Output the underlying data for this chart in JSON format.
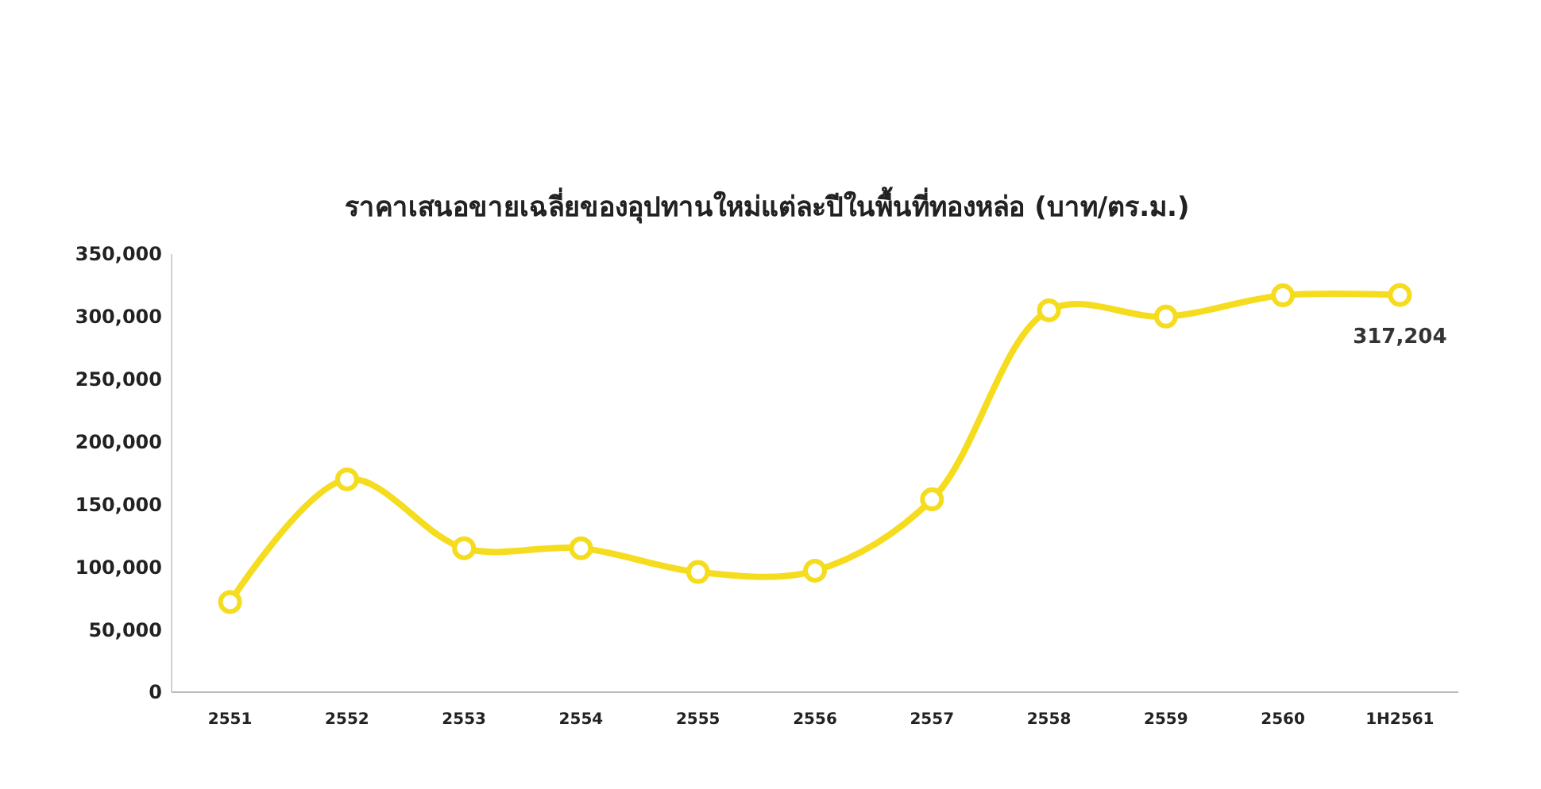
{
  "chart_data": {
    "type": "line",
    "title": "ราคาเสนอขายเฉลี่ยของอุปทานใหม่แต่ละปีในพื้นที่ทองหล่อ (บาท/ตร.ม.)",
    "categories": [
      "2551",
      "2552",
      "2553",
      "2554",
      "2555",
      "2556",
      "2557",
      "2558",
      "2559",
      "2560",
      "1H2561"
    ],
    "series": [
      {
        "color": "#f5dc1e",
        "values": [
          72000,
          170000,
          115000,
          115000,
          96000,
          97000,
          154000,
          305000,
          300000,
          317000,
          317204
        ],
        "value_labels": [
          null,
          null,
          null,
          null,
          null,
          null,
          null,
          null,
          null,
          null,
          "317,204"
        ]
      }
    ],
    "ylim": [
      0,
      350000
    ],
    "yticks": [
      {
        "value": 0,
        "label": "0"
      },
      {
        "value": 50000,
        "label": "50,000"
      },
      {
        "value": 100000,
        "label": "100,000"
      },
      {
        "value": 150000,
        "label": "150,000"
      },
      {
        "value": 200000,
        "label": "200,000"
      },
      {
        "value": 250000,
        "label": "250,000"
      },
      {
        "value": 300000,
        "label": "300,000"
      },
      {
        "value": 350000,
        "label": "350,000"
      }
    ],
    "marker": "circle",
    "line_style": "solid",
    "grid": false
  }
}
